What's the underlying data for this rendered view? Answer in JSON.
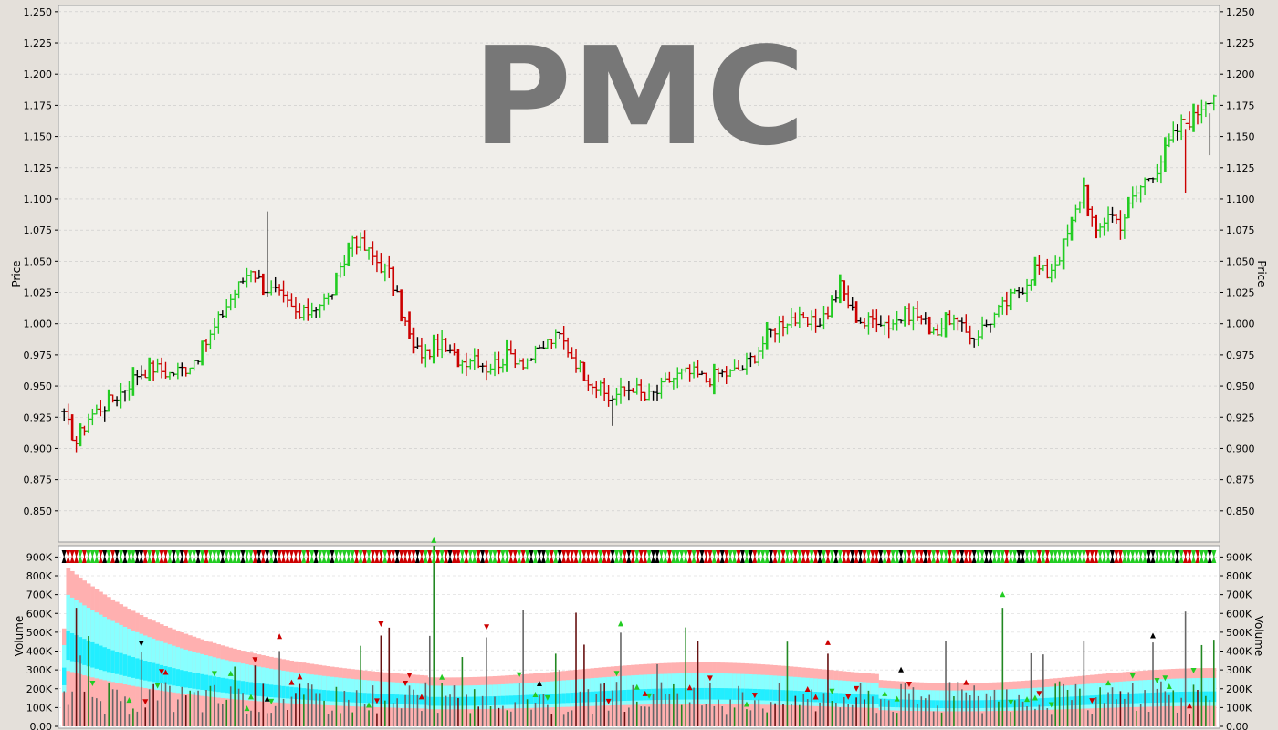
{
  "ticker": "PMC",
  "colors": {
    "up": "#22cc22",
    "down": "#cc0000",
    "neutral": "#000000",
    "volume_bar": "#666666",
    "band_outer": "#ffb0b0",
    "band_mid": "#88ffff",
    "band_inner": "#22eeff",
    "background": "#e4e0da",
    "plot_bg": "#f0eeea",
    "volume_bg": "#ffffff",
    "watermark": "#777777"
  },
  "chart_data": [
    {
      "type": "ohlc",
      "title": "PMC",
      "ylabel": "Price",
      "ylim": [
        0.825,
        1.255
      ],
      "yticks": [
        "0.850",
        "0.875",
        "0.900",
        "0.925",
        "0.950",
        "0.975",
        "1.000",
        "1.025",
        "1.050",
        "1.075",
        "1.100",
        "1.125",
        "1.150",
        "1.175",
        "1.200",
        "1.225",
        "1.250"
      ],
      "grid": true,
      "anchors": [
        [
          0,
          0.925
        ],
        [
          3,
          0.905
        ],
        [
          6,
          0.925
        ],
        [
          10,
          0.935
        ],
        [
          14,
          0.945
        ],
        [
          18,
          0.96
        ],
        [
          22,
          0.965
        ],
        [
          26,
          0.96
        ],
        [
          30,
          0.965
        ],
        [
          33,
          0.975
        ],
        [
          36,
          0.99
        ],
        [
          40,
          1.015
        ],
        [
          43,
          1.03
        ],
        [
          46,
          1.045
        ],
        [
          49,
          1.03
        ],
        [
          52,
          1.025
        ],
        [
          55,
          1.015
        ],
        [
          58,
          1.005
        ],
        [
          62,
          1.015
        ],
        [
          65,
          1.02
        ],
        [
          68,
          1.04
        ],
        [
          71,
          1.07
        ],
        [
          74,
          1.06
        ],
        [
          77,
          1.05
        ],
        [
          80,
          1.04
        ],
        [
          83,
          1.01
        ],
        [
          86,
          0.98
        ],
        [
          89,
          0.975
        ],
        [
          92,
          0.985
        ],
        [
          95,
          0.975
        ],
        [
          98,
          0.97
        ],
        [
          101,
          0.975
        ],
        [
          104,
          0.965
        ],
        [
          107,
          0.97
        ],
        [
          110,
          0.975
        ],
        [
          113,
          0.97
        ],
        [
          116,
          0.975
        ],
        [
          119,
          0.985
        ],
        [
          122,
          0.99
        ],
        [
          125,
          0.975
        ],
        [
          128,
          0.96
        ],
        [
          131,
          0.95
        ],
        [
          134,
          0.94
        ],
        [
          137,
          0.945
        ],
        [
          140,
          0.95
        ],
        [
          143,
          0.94
        ],
        [
          146,
          0.945
        ],
        [
          149,
          0.955
        ],
        [
          152,
          0.96
        ],
        [
          155,
          0.96
        ],
        [
          158,
          0.955
        ],
        [
          161,
          0.96
        ],
        [
          164,
          0.96
        ],
        [
          167,
          0.965
        ],
        [
          170,
          0.975
        ],
        [
          173,
          0.99
        ],
        [
          176,
          1.0
        ],
        [
          179,
          1.005
        ],
        [
          182,
          1.0
        ],
        [
          185,
          1.0
        ],
        [
          188,
          1.01
        ],
        [
          191,
          1.03
        ],
        [
          194,
          1.01
        ],
        [
          197,
          1.0
        ],
        [
          200,
          1.005
        ],
        [
          203,
          1.0
        ],
        [
          206,
          1.005
        ],
        [
          209,
          1.01
        ],
        [
          212,
          1.0
        ],
        [
          215,
          0.995
        ],
        [
          218,
          1.005
        ],
        [
          221,
          0.995
        ],
        [
          224,
          0.99
        ],
        [
          227,
          1.0
        ],
        [
          230,
          1.01
        ],
        [
          233,
          1.02
        ],
        [
          236,
          1.03
        ],
        [
          239,
          1.045
        ],
        [
          242,
          1.04
        ],
        [
          245,
          1.055
        ],
        [
          248,
          1.08
        ],
        [
          251,
          1.11
        ],
        [
          254,
          1.07
        ],
        [
          257,
          1.09
        ],
        [
          260,
          1.08
        ],
        [
          263,
          1.1
        ],
        [
          266,
          1.115
        ],
        [
          269,
          1.125
        ],
        [
          272,
          1.145
        ],
        [
          275,
          1.16
        ],
        [
          278,
          1.165
        ],
        [
          281,
          1.18
        ],
        [
          283,
          1.185
        ]
      ],
      "spikes": {
        "50": 1.09,
        "277": 1.17,
        "282": 1.135,
        "276": 1.105
      },
      "dips": {
        "135": 0.918,
        "3": 0.897
      }
    },
    {
      "type": "bar",
      "ylabel": "Volume",
      "ylim": [
        0,
        960000
      ],
      "yticks": [
        "0.00",
        "100K",
        "200K",
        "300K",
        "400K",
        "500K",
        "600K",
        "700K",
        "800K",
        "900K"
      ],
      "grid": true
    }
  ]
}
